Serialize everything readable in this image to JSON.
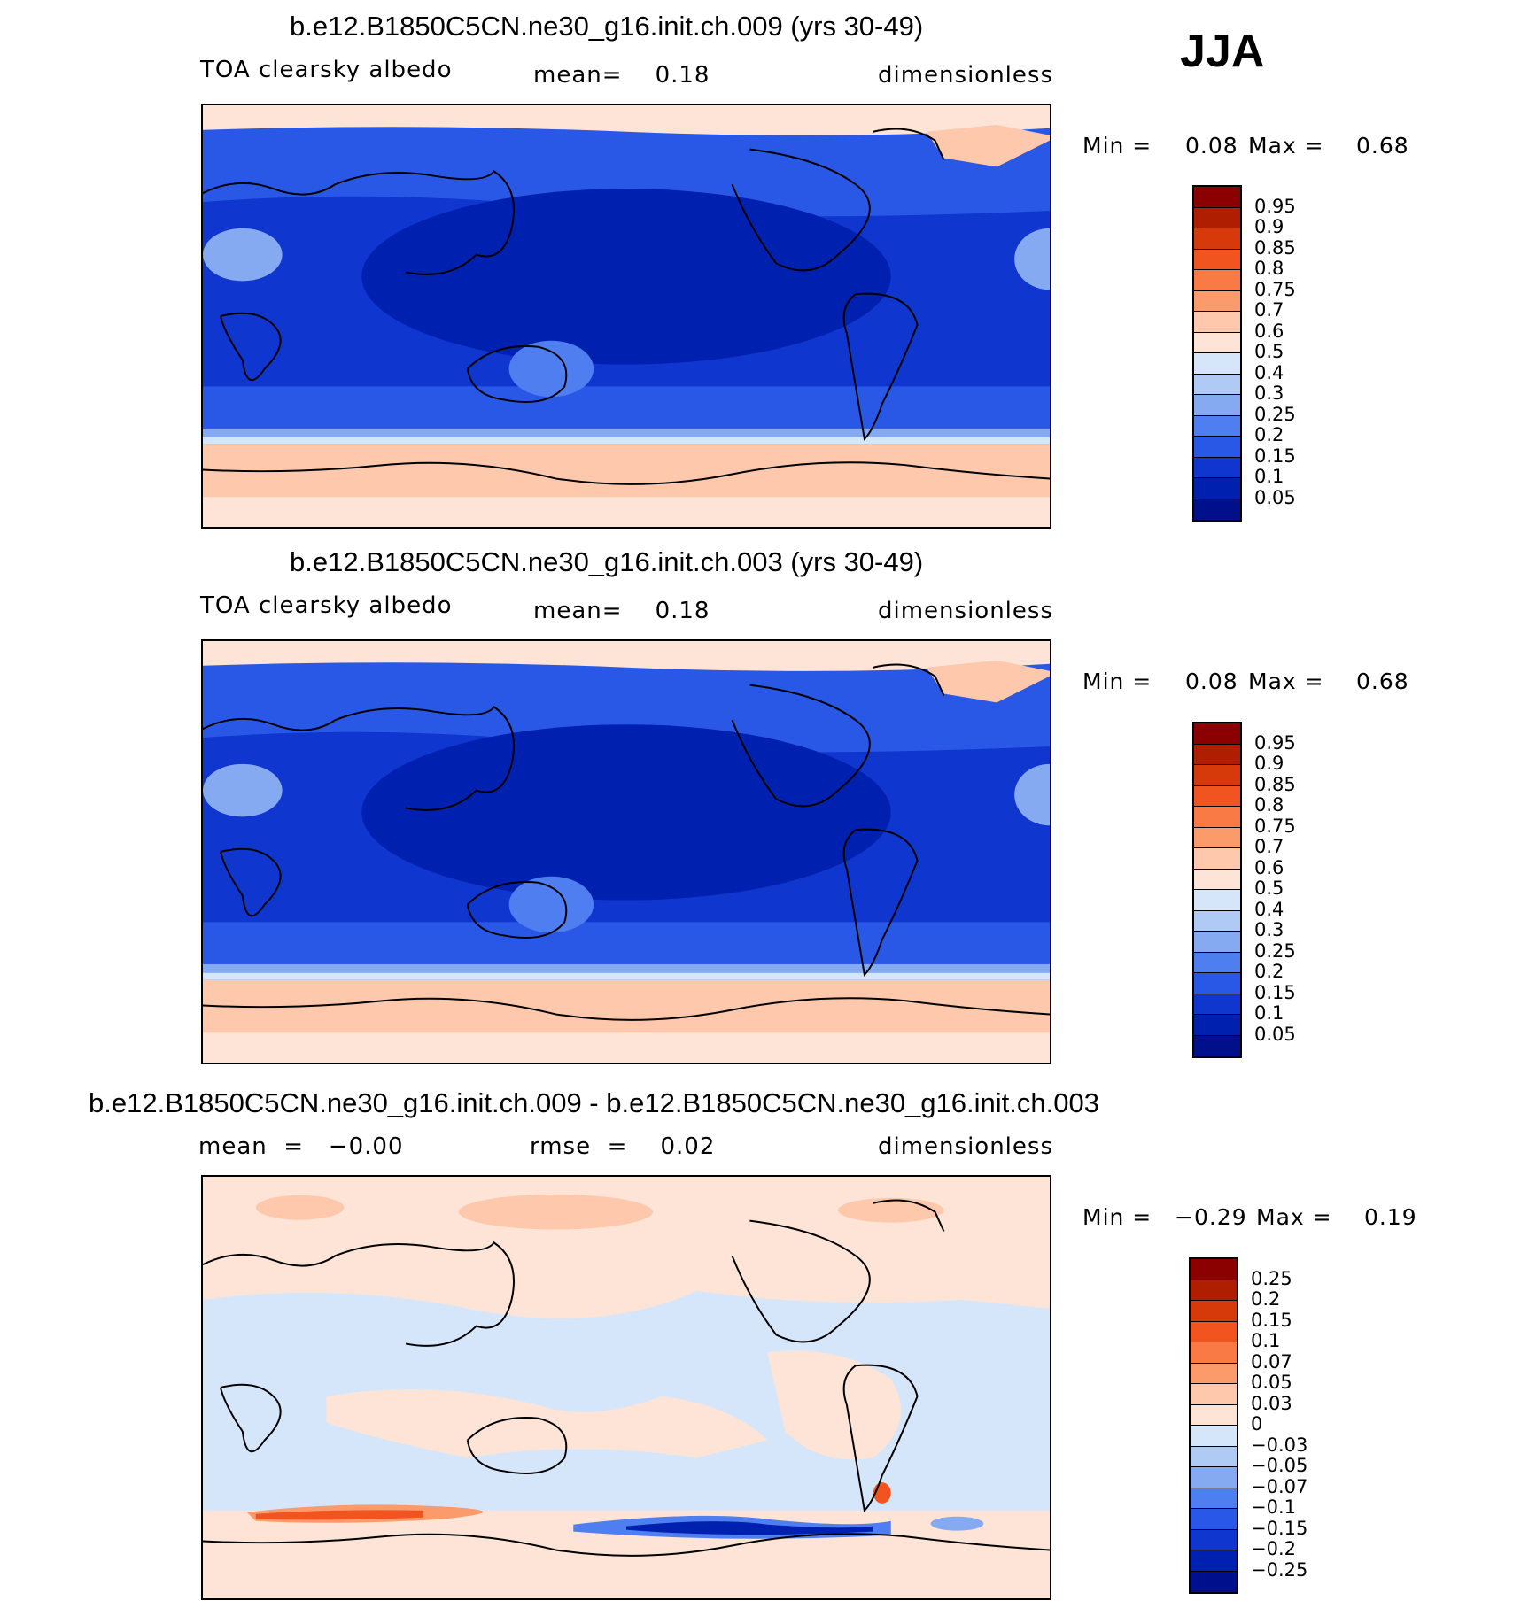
{
  "season": "JJA",
  "panels": [
    {
      "title": "b.e12.B1850C5CN.ne30_g16.init.ch.009 (yrs 30-49)",
      "left_label": "TOA clearsky albedo",
      "center_label": "mean=    0.18",
      "right_label": "dimensionless",
      "min_label": "Min  =",
      "min_value": "0.08",
      "max_label": "Max  =",
      "max_value": "0.68",
      "colorbar": {
        "levels": [
          "0.95",
          "0.9",
          "0.85",
          "0.8",
          "0.75",
          "0.7",
          "0.6",
          "0.5",
          "0.4",
          "0.3",
          "0.25",
          "0.2",
          "0.15",
          "0.1",
          "0.05"
        ],
        "colors": [
          "#8b0000",
          "#b01e00",
          "#d63a0a",
          "#f2541f",
          "#fa7a45",
          "#fb9a6a",
          "#fdc8ac",
          "#fde4d6",
          "#d6e6fa",
          "#afcaf5",
          "#86aaf2",
          "#4f7ef0",
          "#2a58e6",
          "#1036d0",
          "#0020b0",
          "#000f8c"
        ]
      }
    },
    {
      "title": "b.e12.B1850C5CN.ne30_g16.init.ch.003 (yrs 30-49)",
      "left_label": "TOA clearsky albedo",
      "center_label": "mean=    0.18",
      "right_label": "dimensionless",
      "min_label": "Min  =",
      "min_value": "0.08",
      "max_label": "Max  =",
      "max_value": "0.68",
      "colorbar": {
        "levels": [
          "0.95",
          "0.9",
          "0.85",
          "0.8",
          "0.75",
          "0.7",
          "0.6",
          "0.5",
          "0.4",
          "0.3",
          "0.25",
          "0.2",
          "0.15",
          "0.1",
          "0.05"
        ],
        "colors": [
          "#8b0000",
          "#b01e00",
          "#d63a0a",
          "#f2541f",
          "#fa7a45",
          "#fb9a6a",
          "#fdc8ac",
          "#fde4d6",
          "#d6e6fa",
          "#afcaf5",
          "#86aaf2",
          "#4f7ef0",
          "#2a58e6",
          "#1036d0",
          "#0020b0",
          "#000f8c"
        ]
      }
    },
    {
      "title": "b.e12.B1850C5CN.ne30_g16.init.ch.009 - b.e12.B1850C5CN.ne30_g16.init.ch.003",
      "left_label": "mean  =   −0.00",
      "center_label": "rmse  =    0.02",
      "right_label": "dimensionless",
      "min_label": "Min  =",
      "min_value": "−0.29",
      "max_label": "Max  =",
      "max_value": "0.19",
      "colorbar": {
        "levels": [
          "0.25",
          "0.2",
          "0.15",
          "0.1",
          "0.07",
          "0.05",
          "0.03",
          "0",
          "−0.03",
          "−0.05",
          "−0.07",
          "−0.1",
          "−0.15",
          "−0.2",
          "−0.25"
        ],
        "colors": [
          "#8b0000",
          "#b01e00",
          "#d63a0a",
          "#f2541f",
          "#fa7a45",
          "#fb9a6a",
          "#fdc8ac",
          "#fde4d6",
          "#d6e6fa",
          "#afcaf5",
          "#86aaf2",
          "#4f7ef0",
          "#2a58e6",
          "#1036d0",
          "#0020b0",
          "#000f8c"
        ]
      }
    }
  ]
}
